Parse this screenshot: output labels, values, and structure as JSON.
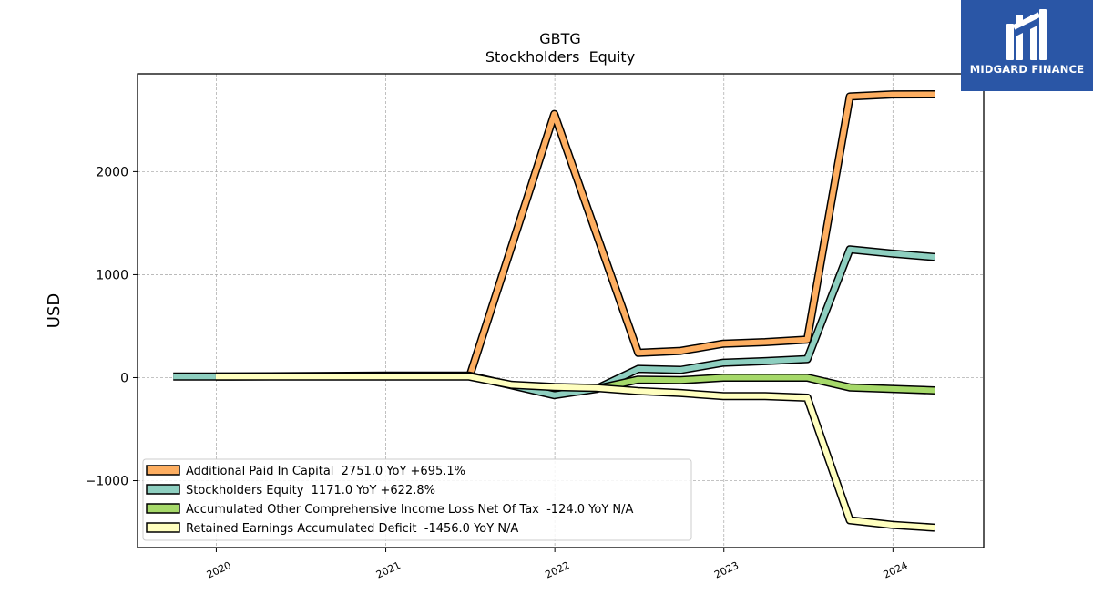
{
  "brand": {
    "name": "MIDGARD FINANCE",
    "background": "#2a56a6"
  },
  "chart_data": {
    "type": "line",
    "title": "GBTG",
    "subtitle": "Stockholders  Equity",
    "xlabel": "",
    "ylabel": "USD",
    "xlim": [
      "2019-07-15",
      "2024-07-15"
    ],
    "ylim": [
      -1650,
      2950
    ],
    "yticks": [
      -1000,
      0,
      1000,
      2000
    ],
    "ytick_labels": [
      "−1000",
      "0",
      "1000",
      "2000"
    ],
    "xticks": [
      "2020-01-01",
      "2021-01-01",
      "2022-01-01",
      "2023-01-01",
      "2024-01-01"
    ],
    "xtick_labels": [
      "2020",
      "2021",
      "2022",
      "2023",
      "2024"
    ],
    "grid": true,
    "legend_position": "lower-left",
    "series": [
      {
        "name": "Additional Paid In Capital  2751.0 YoY +695.1%",
        "color": "#fdae61",
        "points": [
          [
            "2021-06-30",
            0
          ],
          [
            "2021-12-31",
            2560
          ],
          [
            "2022-06-30",
            240
          ],
          [
            "2022-09-30",
            260
          ],
          [
            "2022-12-31",
            330
          ],
          [
            "2023-03-31",
            345
          ],
          [
            "2023-06-30",
            370
          ],
          [
            "2023-09-30",
            2730
          ],
          [
            "2023-12-31",
            2750
          ],
          [
            "2024-03-31",
            2751
          ]
        ]
      },
      {
        "name": "Stockholders Equity  1171.0 YoY +622.8%",
        "color": "#8ecfc0",
        "points": [
          [
            "2019-09-30",
            10
          ],
          [
            "2019-12-31",
            10
          ],
          [
            "2020-12-31",
            20
          ],
          [
            "2021-06-30",
            20
          ],
          [
            "2021-12-31",
            -170
          ],
          [
            "2022-03-31",
            -110
          ],
          [
            "2022-06-30",
            85
          ],
          [
            "2022-09-30",
            75
          ],
          [
            "2022-12-31",
            145
          ],
          [
            "2023-03-31",
            160
          ],
          [
            "2023-06-30",
            180
          ],
          [
            "2023-09-30",
            1245
          ],
          [
            "2023-12-31",
            1205
          ],
          [
            "2024-03-31",
            1171
          ]
        ]
      },
      {
        "name": "Accumulated Other Comprehensive Income Loss Net Of Tax  -124.0 YoY N/A",
        "color": "#a6d96a",
        "points": [
          [
            "2022-03-31",
            -110
          ],
          [
            "2022-06-30",
            -20
          ],
          [
            "2022-09-30",
            -25
          ],
          [
            "2022-12-31",
            0
          ],
          [
            "2023-03-31",
            0
          ],
          [
            "2023-06-30",
            0
          ],
          [
            "2023-09-30",
            -95
          ],
          [
            "2023-12-31",
            -110
          ],
          [
            "2024-03-31",
            -124
          ]
        ]
      },
      {
        "name": "Retained Earnings Accumulated Deficit  -1456.0 YoY N/A",
        "color": "#ffffbf",
        "points": [
          [
            "2019-12-31",
            10
          ],
          [
            "2020-12-31",
            10
          ],
          [
            "2021-06-30",
            10
          ],
          [
            "2021-09-30",
            -70
          ],
          [
            "2021-12-31",
            -90
          ],
          [
            "2022-03-31",
            -100
          ],
          [
            "2022-06-30",
            -130
          ],
          [
            "2022-09-30",
            -150
          ],
          [
            "2022-12-31",
            -180
          ],
          [
            "2023-03-31",
            -180
          ],
          [
            "2023-06-30",
            -195
          ],
          [
            "2023-09-30",
            -1385
          ],
          [
            "2023-12-31",
            -1430
          ],
          [
            "2024-03-31",
            -1456
          ]
        ]
      }
    ]
  }
}
